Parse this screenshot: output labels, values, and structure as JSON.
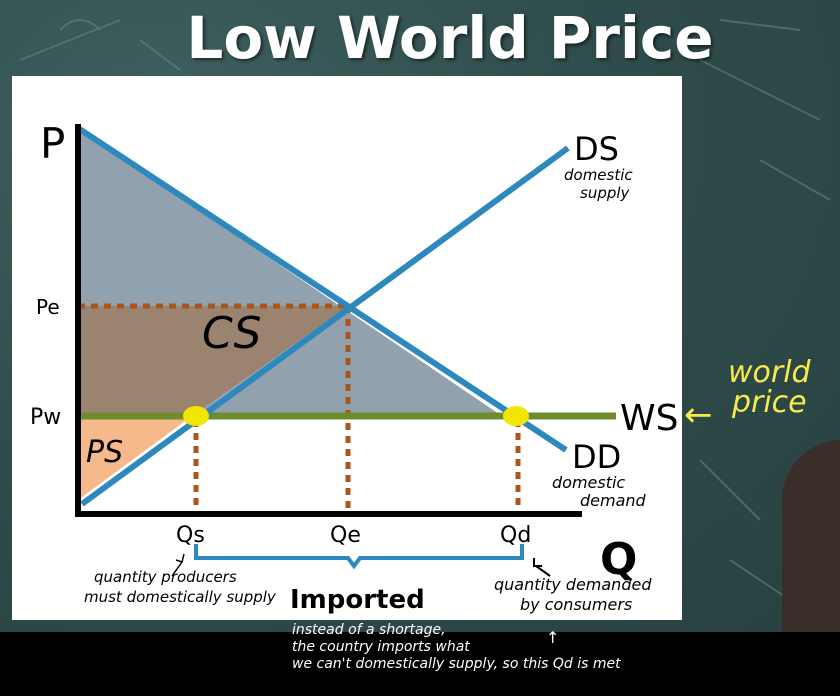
{
  "title": "Low World Price",
  "diagram": {
    "axis_p": "P",
    "axis_q": "Q",
    "label_pe": "Pe",
    "label_pw": "Pw",
    "label_qs": "Qs",
    "label_qe": "Qe",
    "label_qd": "Qd",
    "label_ds": "DS",
    "label_ds_desc_1": "domestic",
    "label_ds_desc_2": "supply",
    "label_dd": "DD",
    "label_dd_desc_1": "domestic",
    "label_dd_desc_2": "demand",
    "label_ws": "WS",
    "label_cs": "CS",
    "label_ps": "PS",
    "label_imported": "Imported",
    "note_qs_1": "quantity producers",
    "note_qs_2": "must domestically supply",
    "note_qd_1": "quantity demanded",
    "note_qd_2": "by consumers"
  },
  "annotations": {
    "world_price_1": "world",
    "world_price_2": "price",
    "bottom_note_1": "instead of a shortage,",
    "bottom_note_2": "the country imports what",
    "bottom_note_3": "we can't domestically supply, so this Qd is met"
  },
  "colors": {
    "curve": "#2c88bd",
    "world_line": "#6e8c2d",
    "dotted": "#a8561c",
    "cs_fill": "#7f91a0",
    "cs_brown": "#9c7a5a",
    "ps_fill": "#f5b98c",
    "dot": "#f2e600",
    "world_note": "#f7ea4a"
  }
}
